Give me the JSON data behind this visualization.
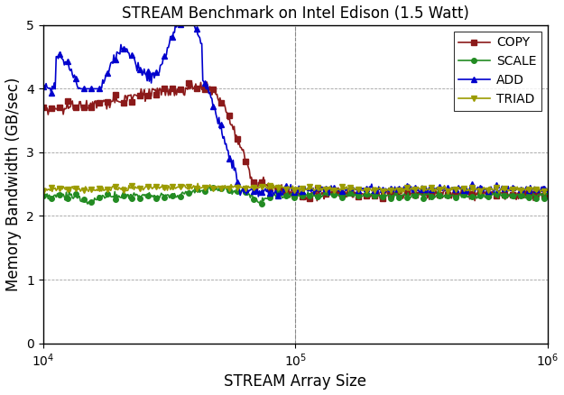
{
  "title": "STREAM Benchmark on Intel Edison (1.5 Watt)",
  "xlabel": "STREAM Array Size",
  "ylabel": "Memory Bandwidth (GB/sec)",
  "ylim": [
    0,
    5
  ],
  "yticks": [
    0,
    1,
    2,
    3,
    4,
    5
  ],
  "vline_x": 100000,
  "colors": {
    "COPY": "#8B1A1A",
    "SCALE": "#228B22",
    "ADD": "#0000CD",
    "TRIAD": "#9B9B00"
  },
  "markers": {
    "COPY": "s",
    "SCALE": "o",
    "ADD": "^",
    "TRIAD": "v"
  },
  "background_color": "#ffffff",
  "grid_color": "#888888"
}
